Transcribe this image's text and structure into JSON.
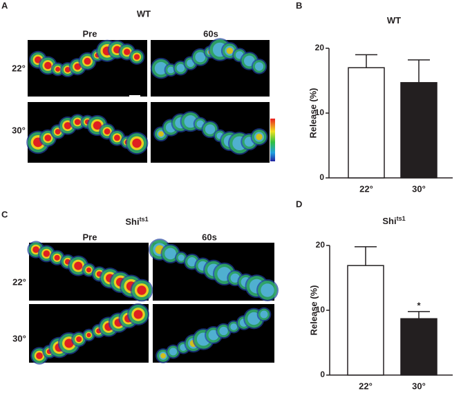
{
  "panel_a": {
    "letter": "A",
    "title": "WT",
    "columns": [
      "Pre",
      "60s"
    ],
    "rows": [
      "22°",
      "30°"
    ]
  },
  "panel_c": {
    "letter": "C",
    "title": "Shi",
    "title_superscript": "ts1",
    "columns": [
      "Pre",
      "60s"
    ],
    "rows": [
      "22°",
      "30°"
    ]
  },
  "chart_data": [
    {
      "letter": "B",
      "type": "bar",
      "title": "WT",
      "ylabel": "Release (%)",
      "categories": [
        "22°",
        "30°"
      ],
      "values": [
        17,
        14.7
      ],
      "errors": [
        2,
        3.5
      ],
      "colors": [
        "#ffffff",
        "#231f20"
      ],
      "ylim": [
        0,
        20
      ],
      "yticks": [
        0,
        10,
        20
      ]
    },
    {
      "letter": "D",
      "type": "bar",
      "title": "Shi",
      "title_superscript": "ts1",
      "ylabel": "Release (%)",
      "categories": [
        "22°",
        "30°"
      ],
      "values": [
        16.9,
        8.7
      ],
      "errors": [
        2.9,
        1.1
      ],
      "value_annotations": [
        null,
        "*"
      ],
      "colors": [
        "#ffffff",
        "#231f20"
      ],
      "ylim": [
        0,
        20
      ],
      "yticks": [
        0,
        10,
        20
      ]
    }
  ]
}
